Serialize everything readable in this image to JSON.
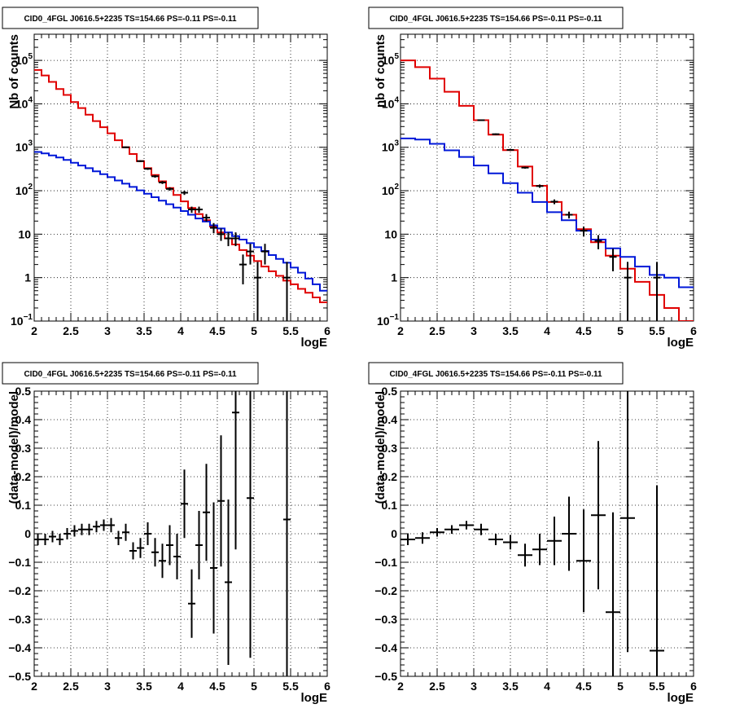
{
  "colors": {
    "data": "#000000",
    "total_model": "#e00000",
    "component_model": "#0018d8",
    "grid": "#000000"
  },
  "chart_data": [
    {
      "type": "histogram",
      "title": "CID0_4FGL J0616.5+2235 TS=154.66 PS=-0.11 PS=-0.11",
      "xlabel": "logE",
      "ylabel": "Nb of counts",
      "xlim": [
        2,
        6
      ],
      "ylim": [
        0.1,
        400000
      ],
      "yscale": "log",
      "grid": true,
      "x_ticks": [
        "2",
        "2.5",
        "3",
        "3.5",
        "4",
        "4.5",
        "5",
        "5.5",
        "6"
      ],
      "y_ticks": [
        {
          "v": 0.1,
          "label": "10",
          "exp": "−1"
        },
        {
          "v": 1,
          "label": "1",
          "exp": ""
        },
        {
          "v": 10,
          "label": "10",
          "exp": ""
        },
        {
          "v": 100,
          "label": "10",
          "exp": "2"
        },
        {
          "v": 1000,
          "label": "10",
          "exp": "3"
        },
        {
          "v": 10000,
          "label": "10",
          "exp": "4"
        },
        {
          "v": 100000,
          "label": "10",
          "exp": "5"
        }
      ],
      "bin_edges": [
        2.0,
        2.1,
        2.2,
        2.3,
        2.4,
        2.5,
        2.6,
        2.7,
        2.8,
        2.9,
        3.0,
        3.1,
        3.2,
        3.3,
        3.4,
        3.5,
        3.6,
        3.7,
        3.8,
        3.9,
        4.0,
        4.1,
        4.2,
        4.3,
        4.4,
        4.5,
        4.6,
        4.7,
        4.8,
        4.9,
        5.0,
        5.1,
        5.2,
        5.3,
        5.4,
        5.5,
        5.6,
        5.7,
        5.8,
        5.9,
        6.0
      ],
      "series": [
        {
          "name": "",
          "role": "total_model",
          "values": [
            60000,
            45000,
            32000,
            22000,
            16000,
            11000,
            8000,
            5600,
            4000,
            2900,
            2100,
            1450,
            1000,
            700,
            480,
            330,
            230,
            165,
            115,
            80,
            57,
            40,
            29,
            21,
            15,
            11,
            8,
            5.8,
            4.3,
            3.2,
            2.4,
            1.8,
            1.4,
            1.1,
            0.85,
            0.7,
            0.55,
            0.45,
            0.35,
            0.27
          ]
        },
        {
          "name": "",
          "role": "component_model",
          "values": [
            780,
            720,
            650,
            580,
            510,
            440,
            380,
            330,
            280,
            240,
            205,
            172,
            145,
            122,
            102,
            85,
            71,
            59,
            49,
            41,
            34,
            28,
            23,
            19.5,
            16,
            13.5,
            11,
            9,
            7.5,
            6.2,
            5,
            4.1,
            3.3,
            2.7,
            2.2,
            1.7,
            1.3,
            0.95,
            0.7,
            0.5
          ]
        }
      ],
      "points": [
        {
          "x": 3.25,
          "y": 1000,
          "ylo": 960,
          "yhi": 1040
        },
        {
          "x": 3.45,
          "y": 480,
          "ylo": 458,
          "yhi": 502
        },
        {
          "x": 3.55,
          "y": 320,
          "ylo": 302,
          "yhi": 338
        },
        {
          "x": 3.65,
          "y": 215,
          "ylo": 200,
          "yhi": 230
        },
        {
          "x": 3.75,
          "y": 155,
          "ylo": 143,
          "yhi": 167
        },
        {
          "x": 3.85,
          "y": 110,
          "ylo": 100,
          "yhi": 120
        },
        {
          "x": 4.05,
          "y": 90,
          "ylo": 80,
          "yhi": 100
        },
        {
          "x": 4.15,
          "y": 37,
          "ylo": 31,
          "yhi": 43
        },
        {
          "x": 4.25,
          "y": 37,
          "ylo": 31,
          "yhi": 43
        },
        {
          "x": 4.35,
          "y": 24,
          "ylo": 19.5,
          "yhi": 29
        },
        {
          "x": 4.45,
          "y": 14,
          "ylo": 10.5,
          "yhi": 18
        },
        {
          "x": 4.55,
          "y": 10,
          "ylo": 7,
          "yhi": 13.5
        },
        {
          "x": 4.65,
          "y": 8,
          "ylo": 5.3,
          "yhi": 11
        },
        {
          "x": 4.75,
          "y": 8,
          "ylo": 5.3,
          "yhi": 11
        },
        {
          "x": 4.85,
          "y": 2,
          "ylo": 0.7,
          "yhi": 3.4
        },
        {
          "x": 4.95,
          "y": 4,
          "ylo": 2,
          "yhi": 6
        },
        {
          "x": 5.05,
          "y": 1,
          "ylo": 0.1,
          "yhi": 2.3
        },
        {
          "x": 5.15,
          "y": 4,
          "ylo": 2,
          "yhi": 6
        },
        {
          "x": 5.45,
          "y": 1,
          "ylo": 0.1,
          "yhi": 2.3
        }
      ]
    },
    {
      "type": "histogram",
      "title": "CID0_4FGL J0616.5+2235 TS=154.66 PS=-0.11 PS=-0.11",
      "xlabel": "logE",
      "ylabel": "nb of counts",
      "xlim": [
        2,
        6
      ],
      "ylim": [
        0.1,
        400000
      ],
      "yscale": "log",
      "grid": true,
      "x_ticks": [
        "2",
        "2.5",
        "3",
        "3.5",
        "4",
        "4.5",
        "5",
        "5.5",
        "6"
      ],
      "y_ticks": [
        {
          "v": 0.1,
          "label": "10",
          "exp": "−1"
        },
        {
          "v": 1,
          "label": "1",
          "exp": ""
        },
        {
          "v": 10,
          "label": "10",
          "exp": ""
        },
        {
          "v": 100,
          "label": "10",
          "exp": "2"
        },
        {
          "v": 1000,
          "label": "10",
          "exp": "3"
        },
        {
          "v": 10000,
          "label": "10",
          "exp": "4"
        },
        {
          "v": 100000,
          "label": "10",
          "exp": "5"
        }
      ],
      "bin_edges": [
        2.0,
        2.2,
        2.4,
        2.6,
        2.8,
        3.0,
        3.2,
        3.4,
        3.6,
        3.8,
        4.0,
        4.2,
        4.4,
        4.6,
        4.8,
        5.0,
        5.2,
        5.4,
        5.6,
        5.8,
        6.0
      ],
      "series": [
        {
          "name": "",
          "role": "total_model",
          "values": [
            100000,
            70000,
            38000,
            19000,
            9000,
            4200,
            1950,
            860,
            360,
            130,
            55,
            28,
            13,
            6.5,
            3.2,
            1.6,
            0.8,
            0.4,
            0.2,
            0.1
          ]
        },
        {
          "name": "",
          "role": "component_model",
          "values": [
            1600,
            1500,
            1200,
            850,
            600,
            380,
            250,
            150,
            90,
            55,
            32,
            21,
            12,
            7.5,
            4.7,
            3,
            1.8,
            1.15,
            1,
            0.6
          ]
        }
      ],
      "points": [
        {
          "x": 3.1,
          "y": 4200,
          "ylo": 4080,
          "yhi": 4320
        },
        {
          "x": 3.3,
          "y": 2000,
          "ylo": 1920,
          "yhi": 2080
        },
        {
          "x": 3.5,
          "y": 870,
          "ylo": 840,
          "yhi": 900
        },
        {
          "x": 3.7,
          "y": 340,
          "ylo": 322,
          "yhi": 358
        },
        {
          "x": 3.9,
          "y": 128,
          "ylo": 117,
          "yhi": 139
        },
        {
          "x": 4.1,
          "y": 56,
          "ylo": 49,
          "yhi": 63
        },
        {
          "x": 4.3,
          "y": 28,
          "ylo": 23,
          "yhi": 33
        },
        {
          "x": 4.5,
          "y": 12,
          "ylo": 9,
          "yhi": 15
        },
        {
          "x": 4.7,
          "y": 7,
          "ylo": 4.5,
          "yhi": 9.5
        },
        {
          "x": 4.9,
          "y": 3,
          "ylo": 1.4,
          "yhi": 4.6
        },
        {
          "x": 5.1,
          "y": 1,
          "ylo": 0.1,
          "yhi": 2.3
        },
        {
          "x": 5.5,
          "y": 1,
          "ylo": 0.1,
          "yhi": 2.3
        }
      ]
    },
    {
      "type": "scatter",
      "title": "CID0_4FGL J0616.5+2235 TS=154.66 PS=-0.11 PS=-0.11",
      "xlabel": "logE",
      "ylabel": "(data-model)/model",
      "xlim": [
        2,
        6
      ],
      "ylim": [
        -0.5,
        0.5
      ],
      "yscale": "linear",
      "grid": true,
      "x_ticks": [
        "2",
        "2.5",
        "3",
        "3.5",
        "4",
        "4.5",
        "5",
        "5.5",
        "6"
      ],
      "y_ticks": [
        {
          "v": -0.5,
          "label": "−0.5"
        },
        {
          "v": -0.4,
          "label": "−0.4"
        },
        {
          "v": -0.3,
          "label": "−0.3"
        },
        {
          "v": -0.2,
          "label": "−0.2"
        },
        {
          "v": -0.1,
          "label": "−0.1"
        },
        {
          "v": 0,
          "label": "0"
        },
        {
          "v": 0.1,
          "label": "0.1"
        },
        {
          "v": 0.2,
          "label": "0.2"
        },
        {
          "v": 0.3,
          "label": "0.3"
        },
        {
          "v": 0.4,
          "label": "0.4"
        },
        {
          "v": 0.5,
          "label": "0.5"
        }
      ],
      "xerr": 0.05,
      "points": [
        {
          "x": 2.05,
          "y": -0.02,
          "err": 0.02
        },
        {
          "x": 2.15,
          "y": -0.02,
          "err": 0.02
        },
        {
          "x": 2.25,
          "y": -0.01,
          "err": 0.02
        },
        {
          "x": 2.35,
          "y": -0.02,
          "err": 0.02
        },
        {
          "x": 2.45,
          "y": 0.0,
          "err": 0.02
        },
        {
          "x": 2.55,
          "y": 0.01,
          "err": 0.02
        },
        {
          "x": 2.65,
          "y": 0.015,
          "err": 0.02
        },
        {
          "x": 2.75,
          "y": 0.015,
          "err": 0.02
        },
        {
          "x": 2.85,
          "y": 0.025,
          "err": 0.02
        },
        {
          "x": 2.95,
          "y": 0.03,
          "err": 0.02
        },
        {
          "x": 3.05,
          "y": 0.03,
          "err": 0.025
        },
        {
          "x": 3.15,
          "y": -0.015,
          "err": 0.025
        },
        {
          "x": 3.25,
          "y": 0.005,
          "err": 0.03
        },
        {
          "x": 3.35,
          "y": -0.06,
          "err": 0.03
        },
        {
          "x": 3.45,
          "y": -0.05,
          "err": 0.035
        },
        {
          "x": 3.55,
          "y": 0.0,
          "err": 0.04
        },
        {
          "x": 3.65,
          "y": -0.065,
          "err": 0.05
        },
        {
          "x": 3.75,
          "y": -0.095,
          "err": 0.06
        },
        {
          "x": 3.85,
          "y": -0.04,
          "err": 0.07
        },
        {
          "x": 3.95,
          "y": -0.08,
          "err": 0.08
        },
        {
          "x": 4.05,
          "y": 0.105,
          "err": 0.12
        },
        {
          "x": 4.15,
          "y": -0.245,
          "err": 0.12
        },
        {
          "x": 4.25,
          "y": -0.04,
          "err": 0.12
        },
        {
          "x": 4.35,
          "y": 0.075,
          "err": 0.17
        },
        {
          "x": 4.45,
          "y": -0.12,
          "err": 0.23
        },
        {
          "x": 4.55,
          "y": 0.115,
          "err": 0.23
        },
        {
          "x": 4.65,
          "y": -0.17,
          "err": 0.29
        },
        {
          "x": 4.75,
          "y": 0.425,
          "err": 0.48
        },
        {
          "x": 4.95,
          "y": 0.125,
          "err": 0.56
        },
        {
          "x": 5.45,
          "y": 0.05,
          "err": 0.9
        }
      ]
    },
    {
      "type": "scatter",
      "title": "CID0_4FGL J0616.5+2235 TS=154.66 PS=-0.11 PS=-0.11",
      "xlabel": "logE",
      "ylabel": "(data-model)/model",
      "xlim": [
        2,
        6
      ],
      "ylim": [
        -0.5,
        0.5
      ],
      "yscale": "linear",
      "grid": true,
      "x_ticks": [
        "2",
        "2.5",
        "3",
        "3.5",
        "4",
        "4.5",
        "5",
        "5.5",
        "6"
      ],
      "y_ticks": [
        {
          "v": -0.5,
          "label": "−0.5"
        },
        {
          "v": -0.4,
          "label": "−0.4"
        },
        {
          "v": -0.3,
          "label": "−0.3"
        },
        {
          "v": -0.2,
          "label": "−0.2"
        },
        {
          "v": -0.1,
          "label": "−0.1"
        },
        {
          "v": 0,
          "label": "0"
        },
        {
          "v": 0.1,
          "label": "0.1"
        },
        {
          "v": 0.2,
          "label": "0.2"
        },
        {
          "v": 0.3,
          "label": "0.3"
        },
        {
          "v": 0.4,
          "label": "0.4"
        },
        {
          "v": 0.5,
          "label": "0.5"
        }
      ],
      "xerr": 0.1,
      "points": [
        {
          "x": 2.1,
          "y": -0.02,
          "err": 0.02
        },
        {
          "x": 2.3,
          "y": -0.015,
          "err": 0.02
        },
        {
          "x": 2.5,
          "y": 0.005,
          "err": 0.015
        },
        {
          "x": 2.7,
          "y": 0.015,
          "err": 0.015
        },
        {
          "x": 2.9,
          "y": 0.03,
          "err": 0.015
        },
        {
          "x": 3.1,
          "y": 0.015,
          "err": 0.02
        },
        {
          "x": 3.3,
          "y": -0.02,
          "err": 0.02
        },
        {
          "x": 3.5,
          "y": -0.03,
          "err": 0.025
        },
        {
          "x": 3.7,
          "y": -0.075,
          "err": 0.04
        },
        {
          "x": 3.9,
          "y": -0.055,
          "err": 0.055
        },
        {
          "x": 4.1,
          "y": -0.025,
          "err": 0.085
        },
        {
          "x": 4.3,
          "y": 0.0,
          "err": 0.13
        },
        {
          "x": 4.5,
          "y": -0.095,
          "err": 0.18
        },
        {
          "x": 4.7,
          "y": 0.065,
          "err": 0.26
        },
        {
          "x": 4.9,
          "y": -0.275,
          "err": 0.35
        },
        {
          "x": 5.1,
          "y": 0.055,
          "err": 0.47
        },
        {
          "x": 5.5,
          "y": -0.41,
          "err": 0.58
        }
      ]
    }
  ]
}
